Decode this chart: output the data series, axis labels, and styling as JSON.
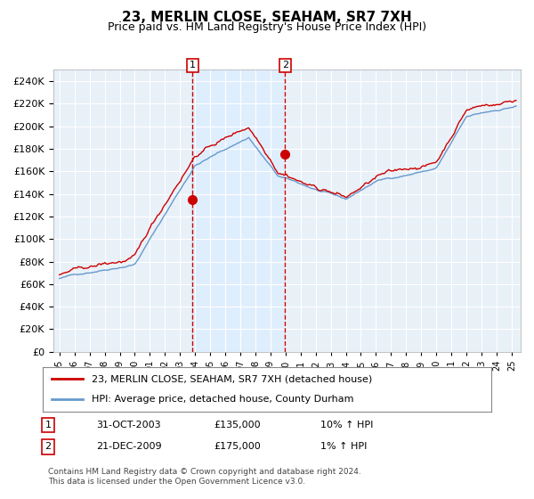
{
  "title": "23, MERLIN CLOSE, SEAHAM, SR7 7XH",
  "subtitle": "Price paid vs. HM Land Registry's House Price Index (HPI)",
  "legend_line1": "23, MERLIN CLOSE, SEAHAM, SR7 7XH (detached house)",
  "legend_line2": "HPI: Average price, detached house, County Durham",
  "table_row1": [
    "1",
    "31-OCT-2003",
    "£135,000",
    "10% ↑ HPI"
  ],
  "table_row2": [
    "2",
    "21-DEC-2009",
    "£175,000",
    "1% ↑ HPI"
  ],
  "footnote": "Contains HM Land Registry data © Crown copyright and database right 2024.\nThis data is licensed under the Open Government Licence v3.0.",
  "purchase1_date": 2003.83,
  "purchase1_price": 135000,
  "purchase2_date": 2009.97,
  "purchase2_price": 175000,
  "red_line_color": "#cc0000",
  "blue_line_color": "#6699cc",
  "shade_color": "#ddeeff",
  "vline_color": "#cc0000",
  "point_color": "#cc0000",
  "bg_color": "#ffffff",
  "plot_bg_color": "#e8f0f8",
  "grid_color": "#ffffff",
  "ylim": [
    0,
    250000
  ],
  "yticks": [
    0,
    20000,
    40000,
    60000,
    80000,
    100000,
    120000,
    140000,
    160000,
    180000,
    200000,
    220000,
    240000
  ],
  "title_fontsize": 11,
  "subtitle_fontsize": 9
}
